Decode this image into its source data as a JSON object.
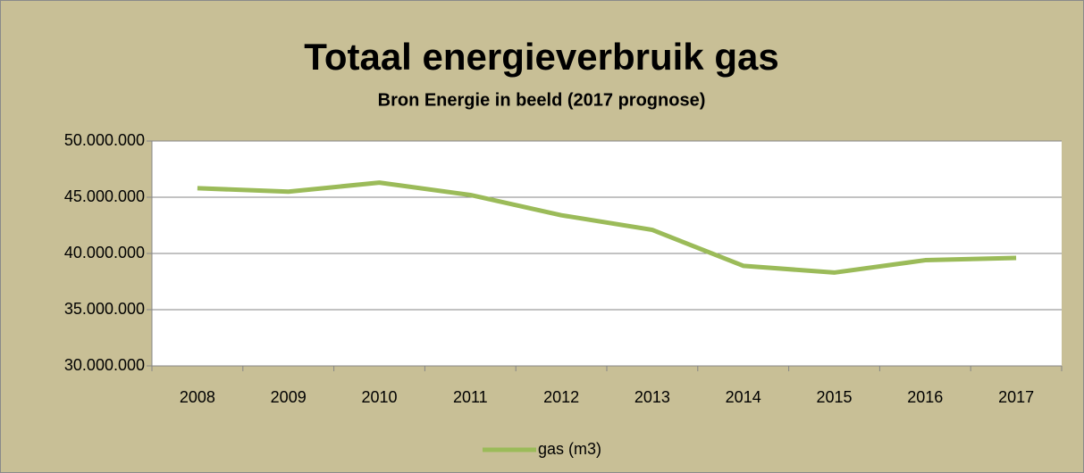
{
  "chart_data": {
    "type": "line",
    "title": "Totaal energieverbruik gas",
    "subtitle": "Bron Energie in beeld (2017 prognose)",
    "categories": [
      "2008",
      "2009",
      "2010",
      "2011",
      "2012",
      "2013",
      "2014",
      "2015",
      "2016",
      "2017"
    ],
    "series": [
      {
        "name": "gas (m3)",
        "color": "#9bbb59",
        "values": [
          45800000,
          45500000,
          46300000,
          45200000,
          43400000,
          42100000,
          38900000,
          38300000,
          39400000,
          39600000
        ]
      }
    ],
    "ylim": [
      30000000,
      50000000
    ],
    "yticks": [
      {
        "value": 30000000,
        "label": "30.000.000"
      },
      {
        "value": 35000000,
        "label": "35.000.000"
      },
      {
        "value": 40000000,
        "label": "40.000.000"
      },
      {
        "value": 45000000,
        "label": "45.000.000"
      },
      {
        "value": 50000000,
        "label": "50.000.000"
      }
    ],
    "grid": true,
    "legend": "bottom"
  }
}
